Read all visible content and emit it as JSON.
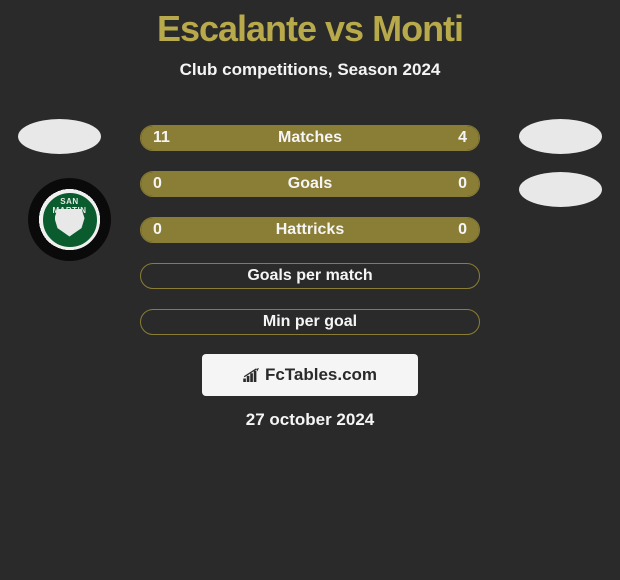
{
  "title": "Escalante vs Monti",
  "subtitle": "Club competitions, Season 2024",
  "date": "27 october 2024",
  "logo_text": "FcTables.com",
  "colors": {
    "background": "#2a2a2a",
    "bar_fill": "#8a7d35",
    "title_color": "#b8a94a",
    "text_light": "#f5f5f5",
    "avatar_bg": "#e8e8e8",
    "badge_green": "#0a5c2e"
  },
  "badge_left_text": "SAN MARTIN",
  "bars": [
    {
      "label": "Matches",
      "left_val": "11",
      "right_val": "4",
      "left_pct": 73.3,
      "right_pct": 26.7,
      "show_vals": true
    },
    {
      "label": "Goals",
      "left_val": "0",
      "right_val": "0",
      "left_pct": 100,
      "right_pct": 0,
      "show_vals": true
    },
    {
      "label": "Hattricks",
      "left_val": "0",
      "right_val": "0",
      "left_pct": 100,
      "right_pct": 0,
      "show_vals": true
    },
    {
      "label": "Goals per match",
      "left_val": "",
      "right_val": "",
      "left_pct": 0,
      "right_pct": 0,
      "show_vals": false
    },
    {
      "label": "Min per goal",
      "left_val": "",
      "right_val": "",
      "left_pct": 0,
      "right_pct": 0,
      "show_vals": false
    }
  ]
}
